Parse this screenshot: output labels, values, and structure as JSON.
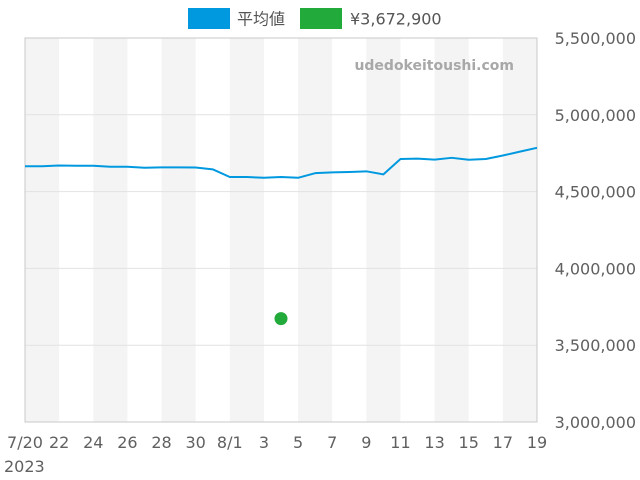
{
  "legend": {
    "series_label": "平均値",
    "point_label": "¥3,672,900"
  },
  "watermark": "udedokeitoushi.com",
  "colors": {
    "line": "#0099e0",
    "point": "#22aa3a",
    "band": "#f4f4f4",
    "grid": "#e2e2e2",
    "frame": "#c8c8c8"
  },
  "chart_data": {
    "type": "line",
    "x_tick_labels": [
      "7/20",
      "22",
      "24",
      "26",
      "28",
      "30",
      "8/1",
      "3",
      "5",
      "7",
      "9",
      "11",
      "13",
      "15",
      "17",
      "19"
    ],
    "x_year_label": "2023",
    "y_tick_labels": [
      "5,500,000",
      "5,000,000",
      "4,500,000",
      "4,000,000",
      "3,500,000",
      "3,000,000"
    ],
    "ylim": [
      3000000,
      5500000
    ],
    "xlim": [
      "2023-07-20",
      "2023-08-19"
    ],
    "grid": true,
    "legend_position": "top",
    "series": [
      {
        "name": "平均値",
        "x": [
          "2023-07-20",
          "2023-07-21",
          "2023-07-22",
          "2023-07-23",
          "2023-07-24",
          "2023-07-25",
          "2023-07-26",
          "2023-07-27",
          "2023-07-28",
          "2023-07-29",
          "2023-07-30",
          "2023-07-31",
          "2023-08-01",
          "2023-08-02",
          "2023-08-03",
          "2023-08-04",
          "2023-08-05",
          "2023-08-06",
          "2023-08-07",
          "2023-08-08",
          "2023-08-09",
          "2023-08-10",
          "2023-08-11",
          "2023-08-12",
          "2023-08-13",
          "2023-08-14",
          "2023-08-15",
          "2023-08-16",
          "2023-08-17",
          "2023-08-18",
          "2023-08-19"
        ],
        "values": [
          4665000,
          4665000,
          4670000,
          4668000,
          4668000,
          4662000,
          4662000,
          4655000,
          4658000,
          4658000,
          4657000,
          4645000,
          4595000,
          4595000,
          4590000,
          4595000,
          4590000,
          4620000,
          4625000,
          4628000,
          4632000,
          4612000,
          4712000,
          4715000,
          4708000,
          4720000,
          4707000,
          4712000,
          4735000,
          4760000,
          4785000
        ]
      }
    ],
    "points": [
      {
        "name": "¥3,672,900",
        "x": "2023-08-04",
        "value": 3672900
      }
    ]
  }
}
